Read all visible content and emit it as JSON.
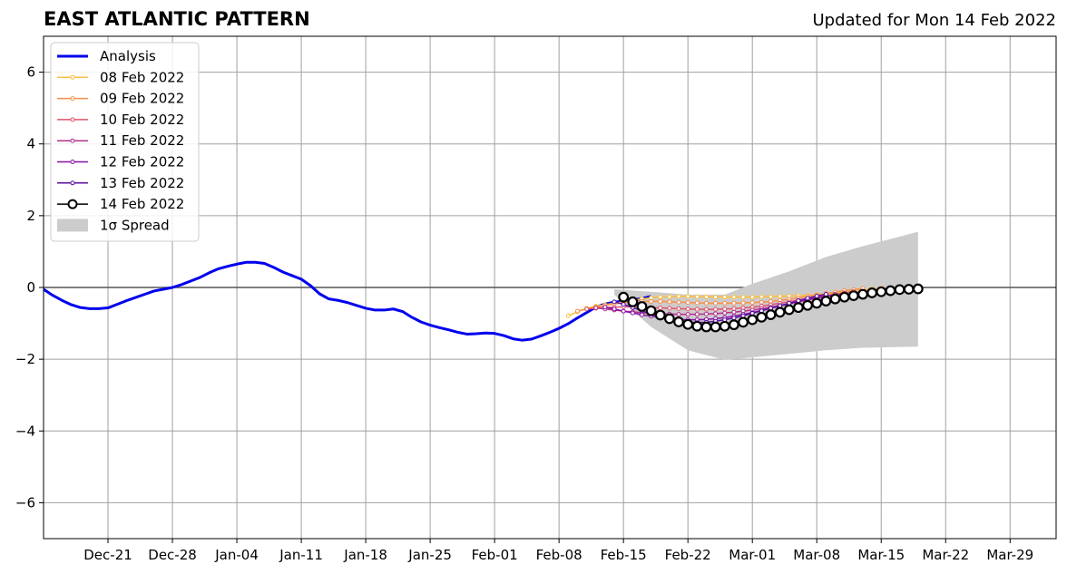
{
  "chart_data": {
    "type": "line",
    "title": "EAST ATLANTIC PATTERN",
    "subtitle": "Updated for Mon 14 Feb 2022",
    "xlabel": "",
    "ylabel": "",
    "ylim": [
      -7,
      7
    ],
    "yticks": [
      6,
      4,
      2,
      0,
      -2,
      -4,
      -6
    ],
    "ytick_labels": [
      "6",
      "4",
      "2",
      "0",
      "−2",
      "−4",
      "−6"
    ],
    "xlim": [
      "2021-12-14",
      "2022-04-03"
    ],
    "xticks": [
      "2021-12-21",
      "2021-12-28",
      "2022-01-04",
      "2022-01-11",
      "2022-01-18",
      "2022-01-25",
      "2022-02-01",
      "2022-02-08",
      "2022-02-15",
      "2022-02-22",
      "2022-03-01",
      "2022-03-08",
      "2022-03-15",
      "2022-03-22",
      "2022-03-29"
    ],
    "xtick_labels": [
      "Dec-21",
      "Dec-28",
      "Jan-04",
      "Jan-11",
      "Jan-18",
      "Jan-25",
      "Feb-01",
      "Feb-08",
      "Feb-15",
      "Feb-22",
      "Mar-01",
      "Mar-08",
      "Mar-15",
      "Mar-22",
      "Mar-29"
    ],
    "grid": true,
    "legend_position": "top-left",
    "analysis": {
      "name": "Analysis",
      "color": "#0000ee",
      "x_start": "2021-12-14",
      "values": [
        -0.05,
        -0.22,
        -0.36,
        -0.48,
        -0.56,
        -0.59,
        -0.59,
        -0.57,
        -0.47,
        -0.37,
        -0.28,
        -0.19,
        -0.1,
        -0.05,
        0.0,
        0.08,
        0.18,
        0.28,
        0.41,
        0.52,
        0.59,
        0.65,
        0.7,
        0.7,
        0.67,
        0.56,
        0.43,
        0.33,
        0.23,
        0.05,
        -0.18,
        -0.32,
        -0.36,
        -0.42,
        -0.5,
        -0.58,
        -0.63,
        -0.63,
        -0.6,
        -0.67,
        -0.83,
        -0.96,
        -1.05,
        -1.12,
        -1.18,
        -1.25,
        -1.3,
        -1.29,
        -1.27,
        -1.28,
        -1.34,
        -1.43,
        -1.47,
        -1.44,
        -1.35,
        -1.25,
        -1.14,
        -1.01,
        -0.85,
        -0.7,
        -0.55,
        -0.46,
        -0.41,
        -0.38,
        -0.35,
        -0.31,
        -0.25
      ]
    },
    "forecasts": [
      {
        "name": "08 Feb 2022",
        "color": "#fbbf40",
        "x_start": "2022-02-09",
        "values": [
          -0.79,
          -0.68,
          -0.58,
          -0.52,
          -0.48,
          -0.44,
          -0.4,
          -0.36,
          -0.32,
          -0.29,
          -0.27,
          -0.26,
          -0.25,
          -0.25,
          -0.26,
          -0.26,
          -0.27,
          -0.27,
          -0.27,
          -0.27,
          -0.27,
          -0.26,
          -0.26,
          -0.25,
          -0.24,
          -0.23,
          -0.22,
          -0.2,
          -0.18,
          -0.16,
          -0.13,
          -0.1,
          -0.07,
          -0.04,
          -0.01
        ]
      },
      {
        "name": "09 Feb 2022",
        "color": "#f98e4a",
        "x_start": "2022-02-10",
        "values": [
          -0.66,
          -0.6,
          -0.55,
          -0.5,
          -0.46,
          -0.42,
          -0.4,
          -0.39,
          -0.39,
          -0.39,
          -0.4,
          -0.41,
          -0.42,
          -0.43,
          -0.44,
          -0.44,
          -0.44,
          -0.44,
          -0.43,
          -0.42,
          -0.41,
          -0.39,
          -0.36,
          -0.33,
          -0.29,
          -0.25,
          -0.21,
          -0.17,
          -0.13,
          -0.09,
          -0.06,
          -0.03
        ]
      },
      {
        "name": "10 Feb 2022",
        "color": "#e2526c",
        "x_start": "2022-02-11",
        "values": [
          -0.6,
          -0.58,
          -0.56,
          -0.55,
          -0.54,
          -0.54,
          -0.55,
          -0.56,
          -0.57,
          -0.58,
          -0.59,
          -0.6,
          -0.61,
          -0.61,
          -0.61,
          -0.6,
          -0.59,
          -0.57,
          -0.55,
          -0.52,
          -0.48,
          -0.44,
          -0.4,
          -0.35,
          -0.31,
          -0.27,
          -0.23,
          -0.19,
          -0.15,
          -0.11
        ]
      },
      {
        "name": "11 Feb 2022",
        "color": "#b52f8c",
        "x_start": "2022-02-12",
        "values": [
          -0.57,
          -0.6,
          -0.63,
          -0.66,
          -0.68,
          -0.7,
          -0.72,
          -0.73,
          -0.74,
          -0.75,
          -0.75,
          -0.75,
          -0.74,
          -0.73,
          -0.71,
          -0.69,
          -0.66,
          -0.63,
          -0.59,
          -0.55,
          -0.5,
          -0.45,
          -0.4,
          -0.35,
          -0.3,
          -0.25,
          -0.21,
          -0.17
        ]
      },
      {
        "name": "12 Feb 2022",
        "color": "#8a0fa6",
        "x_start": "2022-02-13",
        "values": [
          -0.55,
          -0.6,
          -0.66,
          -0.71,
          -0.76,
          -0.8,
          -0.84,
          -0.87,
          -0.89,
          -0.9,
          -0.9,
          -0.89,
          -0.87,
          -0.84,
          -0.8,
          -0.75,
          -0.7,
          -0.64,
          -0.58,
          -0.52,
          -0.46,
          -0.4,
          -0.34,
          -0.29,
          -0.24,
          -0.2
        ]
      },
      {
        "name": "13 Feb 2022",
        "color": "#5a0fa0",
        "x_start": "2022-02-14",
        "values": [
          -0.4,
          -0.47,
          -0.56,
          -0.65,
          -0.74,
          -0.82,
          -0.89,
          -0.94,
          -0.97,
          -0.98,
          -0.97,
          -0.94,
          -0.9,
          -0.85,
          -0.79,
          -0.72,
          -0.65,
          -0.58,
          -0.51,
          -0.44,
          -0.37,
          -0.3,
          -0.24,
          -0.19
        ]
      },
      {
        "name": "14 Feb 2022",
        "color": "#000000",
        "x_start": "2022-02-15",
        "values": [
          -0.27,
          -0.4,
          -0.53,
          -0.65,
          -0.77,
          -0.87,
          -0.96,
          -1.03,
          -1.08,
          -1.1,
          -1.1,
          -1.08,
          -1.04,
          -0.97,
          -0.9,
          -0.83,
          -0.76,
          -0.69,
          -0.62,
          -0.56,
          -0.5,
          -0.44,
          -0.38,
          -0.32,
          -0.27,
          -0.23,
          -0.19,
          -0.15,
          -0.12,
          -0.09,
          -0.06,
          -0.05,
          -0.04
        ]
      }
    ],
    "spread": {
      "name": "1σ Spread",
      "color": "#cccccc",
      "x": [
        "2022-02-14",
        "2022-02-18",
        "2022-02-22",
        "2022-02-26",
        "2022-03-01",
        "2022-03-05",
        "2022-03-09",
        "2022-03-13",
        "2022-03-19"
      ],
      "upper": [
        -0.05,
        -0.12,
        -0.2,
        -0.2,
        0.1,
        0.45,
        0.85,
        1.15,
        1.55
      ],
      "lower": [
        -0.2,
        -1.1,
        -1.75,
        -2.02,
        -1.95,
        -1.85,
        -1.75,
        -1.68,
        -1.65
      ]
    },
    "legend": [
      "Analysis",
      "08 Feb 2022",
      "09 Feb 2022",
      "10 Feb 2022",
      "11 Feb 2022",
      "12 Feb 2022",
      "13 Feb 2022",
      "14 Feb 2022",
      "1σ Spread"
    ]
  }
}
